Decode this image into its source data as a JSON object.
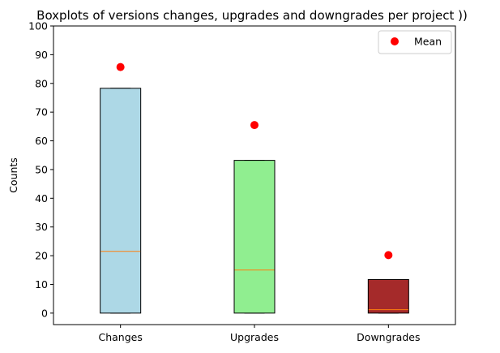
{
  "chart_data": {
    "type": "boxplot",
    "title": "Boxplots of versions changes, upgrades and downgrades per project ))",
    "xlabel": "",
    "ylabel": "Counts",
    "ylim": [
      -4,
      100
    ],
    "yticks": [
      0,
      10,
      20,
      30,
      40,
      50,
      60,
      70,
      80,
      90,
      100
    ],
    "grid": false,
    "legend": {
      "position": "top-right",
      "entries": [
        {
          "label": "Mean",
          "color": "#ff0000",
          "marker": "circle"
        }
      ]
    },
    "categories": [
      "Changes",
      "Upgrades",
      "Downgrades"
    ],
    "boxes": [
      {
        "name": "Changes",
        "q1": 0,
        "median": 21.5,
        "q3": 78.3,
        "whisker_low": 0,
        "whisker_high": 78.3,
        "mean": 85.7,
        "color": "#add8e6"
      },
      {
        "name": "Upgrades",
        "q1": 0,
        "median": 15,
        "q3": 53.2,
        "whisker_low": 0,
        "whisker_high": 53.2,
        "mean": 65.5,
        "color": "#90ee90"
      },
      {
        "name": "Downgrades",
        "q1": 0,
        "median": 1.2,
        "q3": 11.7,
        "whisker_low": 0,
        "whisker_high": 11.7,
        "mean": 20.2,
        "color": "#a52a2a"
      }
    ],
    "median_color": "#ff7f0e",
    "mean_color": "#ff0000"
  }
}
